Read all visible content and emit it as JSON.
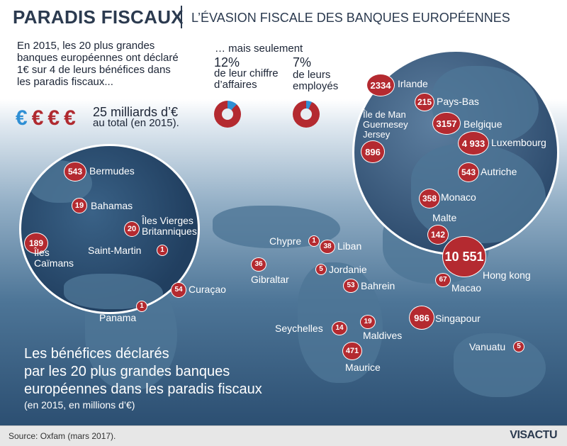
{
  "header": {
    "title": "PARADIS FISCAUX",
    "subtitle": "L’ÉVASION FISCALE DES BANQUES EUROPÉENNES"
  },
  "intro": {
    "text": "En 2015, les 20 plus grandes banques européennes ont déclaré 1€ sur 4 de leurs bénéfices dans les paradis fiscaux...",
    "mais": "… mais seulement",
    "ca_value": "12%",
    "ca_label": "de leur chiffre d’affaires",
    "ca_fraction": 0.12,
    "emp_value": "7%",
    "emp_label": "de leurs employés",
    "emp_fraction": 0.07,
    "euro_symbol": "€",
    "total_value": "25 milliards d’€",
    "total_label": "au total (en 2015)."
  },
  "places": [
    {
      "value": "2334",
      "name": "Irlande"
    },
    {
      "value": "215",
      "name": "Pays-Bas"
    },
    {
      "value": "",
      "name": "Île de Man"
    },
    {
      "value": "",
      "name": "Guernesey"
    },
    {
      "value": "",
      "name": "Jersey"
    },
    {
      "value": "896",
      "name": ""
    },
    {
      "value": "3157",
      "name": "Belgique"
    },
    {
      "value": "4 933",
      "name": "Luxembourg"
    },
    {
      "value": "543",
      "name": "Autriche"
    },
    {
      "value": "358",
      "name": "Monaco"
    },
    {
      "value": "142",
      "name": "Malte"
    },
    {
      "value": "543",
      "name": "Bermudes"
    },
    {
      "value": "19",
      "name": "Bahamas"
    },
    {
      "value": "20",
      "name": "Îles Vierges Britanniques"
    },
    {
      "value": "189",
      "name": "Îles Caïmans"
    },
    {
      "value": "1",
      "name": "Saint-Martin"
    },
    {
      "value": "54",
      "name": "Curaçao"
    },
    {
      "value": "1",
      "name": "Panama"
    },
    {
      "value": "1",
      "name": "Chypre"
    },
    {
      "value": "38",
      "name": "Liban"
    },
    {
      "value": "36",
      "name": "Gibraltar"
    },
    {
      "value": "5",
      "name": "Jordanie"
    },
    {
      "value": "53",
      "name": "Bahrein"
    },
    {
      "value": "10 551",
      "name": "Hong kong"
    },
    {
      "value": "67",
      "name": "Macao"
    },
    {
      "value": "986",
      "name": "Singapour"
    },
    {
      "value": "19",
      "name": "Maldives"
    },
    {
      "value": "14",
      "name": "Seychelles"
    },
    {
      "value": "471",
      "name": "Maurice"
    },
    {
      "value": "5",
      "name": "Vanuatu"
    }
  ],
  "footer": {
    "title_l1": "Les bénéfices déclarés",
    "title_l2": "par les 20 plus grandes banques",
    "title_l3": "européennes dans les paradis fiscaux",
    "sub": "(en 2015, en millions d’€)",
    "source": "Source: Oxfam (mars 2017).",
    "logo": "VISACTU"
  },
  "colors": {
    "bubble": "#b42a30",
    "accent_blue": "#2f8fd4",
    "title": "#2b3a4f"
  }
}
